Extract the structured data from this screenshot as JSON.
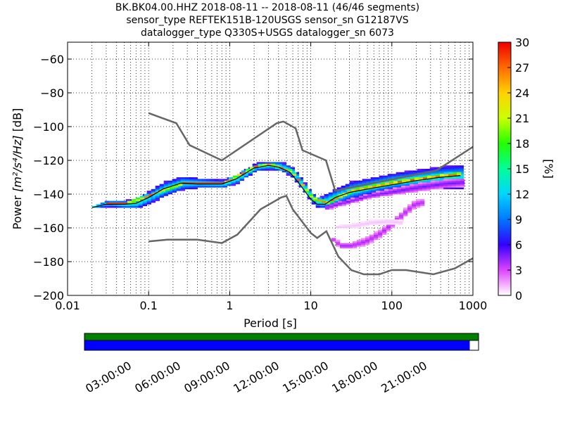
{
  "title_lines": [
    "BK.BK04.00.HHZ   2018-08-11 -- 2018-08-11  (46/46 segments)",
    "sensor_type REFTEK151B-120USGS sensor_sn G12187VS",
    "datalogger_type Q330S+USGS datalogger_sn 6073"
  ],
  "chart_data": {
    "type": "heatmap",
    "xlabel": "Period [s]",
    "ylabel_prefix": "Power ",
    "ylabel_units": "[m²/s⁴/Hz]",
    "ylabel_suffix": " [dB]",
    "x_scale": "log",
    "xlim": [
      0.01,
      1000
    ],
    "ylim": [
      -200,
      -50
    ],
    "x_ticks": [
      {
        "value": 0.01,
        "label": "0.01"
      },
      {
        "value": 0.1,
        "label": "0.1"
      },
      {
        "value": 1,
        "label": "1"
      },
      {
        "value": 10,
        "label": "10"
      },
      {
        "value": 100,
        "label": "100"
      },
      {
        "value": 1000,
        "label": "1000"
      }
    ],
    "y_ticks": [
      {
        "value": -60,
        "label": "−60"
      },
      {
        "value": -80,
        "label": "−80"
      },
      {
        "value": -100,
        "label": "−100"
      },
      {
        "value": -120,
        "label": "−120"
      },
      {
        "value": -140,
        "label": "−140"
      },
      {
        "value": -160,
        "label": "−160"
      },
      {
        "value": -180,
        "label": "−180"
      },
      {
        "value": -200,
        "label": "−200"
      }
    ],
    "grid": true,
    "colorbar": {
      "label": "[%]",
      "min": 0,
      "max": 30,
      "ticks": [
        {
          "value": 0,
          "label": "0"
        },
        {
          "value": 3,
          "label": "3"
        },
        {
          "value": 6,
          "label": "6"
        },
        {
          "value": 9,
          "label": "9"
        },
        {
          "value": 12,
          "label": "12"
        },
        {
          "value": 15,
          "label": "15"
        },
        {
          "value": 18,
          "label": "18"
        },
        {
          "value": 21,
          "label": "21"
        },
        {
          "value": 24,
          "label": "24"
        },
        {
          "value": 27,
          "label": "27"
        },
        {
          "value": 30,
          "label": "30"
        }
      ]
    },
    "noise_models": [
      {
        "curve": "high",
        "points": [
          [
            0.1,
            -92
          ],
          [
            0.22,
            -98
          ],
          [
            0.32,
            -111
          ],
          [
            0.8,
            -120
          ],
          [
            3.8,
            -98
          ],
          [
            4.6,
            -97
          ],
          [
            6.5,
            -101
          ],
          [
            7.9,
            -114
          ],
          [
            15.4,
            -120
          ],
          [
            20,
            -138
          ],
          [
            354,
            -126
          ],
          [
            1000,
            -112
          ]
        ]
      },
      {
        "curve": "low",
        "points": [
          [
            0.1,
            -168
          ],
          [
            0.17,
            -167
          ],
          [
            0.4,
            -167
          ],
          [
            0.8,
            -169
          ],
          [
            1.24,
            -164
          ],
          [
            2.4,
            -149
          ],
          [
            4.3,
            -142
          ],
          [
            5,
            -141
          ],
          [
            6,
            -149
          ],
          [
            10,
            -163
          ],
          [
            12,
            -166
          ],
          [
            15.6,
            -162
          ],
          [
            21.9,
            -177
          ],
          [
            31.6,
            -185
          ],
          [
            45,
            -187.5
          ],
          [
            70,
            -187.5
          ],
          [
            100,
            -185
          ],
          [
            150,
            -185
          ],
          [
            325,
            -187.5
          ],
          [
            600,
            -184
          ],
          [
            1000,
            -178
          ]
        ]
      }
    ],
    "mode_curve": [
      [
        0.02,
        -148
      ],
      [
        0.03,
        -146
      ],
      [
        0.05,
        -146
      ],
      [
        0.07,
        -145.5
      ],
      [
        0.1,
        -142
      ],
      [
        0.15,
        -137
      ],
      [
        0.25,
        -133.5
      ],
      [
        0.4,
        -134
      ],
      [
        0.8,
        -134
      ],
      [
        1.2,
        -131
      ],
      [
        2,
        -124.5
      ],
      [
        3,
        -123
      ],
      [
        4,
        -124
      ],
      [
        5.5,
        -127
      ],
      [
        7,
        -133
      ],
      [
        10,
        -143
      ],
      [
        12,
        -146
      ],
      [
        15,
        -146
      ],
      [
        20,
        -142
      ],
      [
        30,
        -139
      ],
      [
        50,
        -137
      ],
      [
        100,
        -134.5
      ],
      [
        200,
        -132
      ],
      [
        400,
        -130
      ],
      [
        700,
        -129
      ]
    ],
    "density_bands": [
      {
        "points": [
          [
            0.02,
            -148,
            -147
          ],
          [
            0.03,
            -147,
            -144
          ],
          [
            0.05,
            -148,
            -144
          ],
          [
            0.07,
            -148,
            -143
          ],
          [
            0.1,
            -145,
            -138
          ],
          [
            0.15,
            -141,
            -133
          ],
          [
            0.25,
            -137,
            -130
          ],
          [
            0.4,
            -136,
            -131
          ],
          [
            0.8,
            -136,
            -132
          ],
          [
            1.2,
            -133,
            -129
          ],
          [
            2,
            -126,
            -122
          ],
          [
            3,
            -125,
            -121
          ],
          [
            4,
            -126,
            -121
          ],
          [
            5.5,
            -129,
            -124
          ],
          [
            7,
            -135,
            -130
          ],
          [
            10,
            -145,
            -140
          ],
          [
            12,
            -148,
            -143
          ],
          [
            15,
            -148,
            -140
          ],
          [
            20,
            -146,
            -137
          ],
          [
            30,
            -143,
            -133
          ],
          [
            50,
            -140,
            -131
          ],
          [
            100,
            -137,
            -128
          ],
          [
            200,
            -136,
            -126
          ],
          [
            400,
            -136,
            -124
          ],
          [
            700,
            -137,
            -123
          ]
        ],
        "level": 14
      },
      {
        "points": [
          [
            0.03,
            -146,
            -145
          ],
          [
            0.05,
            -146,
            -145
          ],
          [
            0.1,
            -141,
            -140
          ],
          [
            0.25,
            -134,
            -133
          ],
          [
            0.8,
            -134,
            -133
          ],
          [
            2,
            -124,
            -123
          ],
          [
            3,
            -123,
            -122
          ],
          [
            5.5,
            -127,
            -126
          ],
          [
            10,
            -143,
            -142
          ],
          [
            15,
            -146,
            -144
          ],
          [
            30,
            -139,
            -137
          ],
          [
            100,
            -134,
            -132
          ],
          [
            400,
            -130,
            -128
          ],
          [
            700,
            -129,
            -127
          ]
        ],
        "level": 28
      },
      {
        "points": [
          [
            15,
            -149,
            -147
          ],
          [
            20,
            -147,
            -145
          ],
          [
            30,
            -145,
            -143
          ],
          [
            50,
            -142,
            -140
          ],
          [
            100,
            -140,
            -137
          ],
          [
            200,
            -138,
            -134
          ],
          [
            400,
            -136,
            -132
          ],
          [
            700,
            -135,
            -131
          ]
        ],
        "level": 5
      },
      {
        "points": [
          [
            18,
            -168,
            -166
          ],
          [
            22,
            -172,
            -169
          ],
          [
            30,
            -172,
            -169
          ],
          [
            45,
            -170,
            -166
          ],
          [
            70,
            -165,
            -161
          ],
          [
            110,
            -157,
            -153
          ],
          [
            180,
            -148,
            -144
          ],
          [
            250,
            -146,
            -143
          ]
        ],
        "level": 4
      },
      {
        "points": [
          [
            20,
            -160,
            -159
          ],
          [
            30,
            -160,
            -158
          ],
          [
            50,
            -158,
            -156
          ],
          [
            90,
            -157,
            -155
          ],
          [
            130,
            -158,
            -156
          ]
        ],
        "level": 1
      }
    ]
  }
}
